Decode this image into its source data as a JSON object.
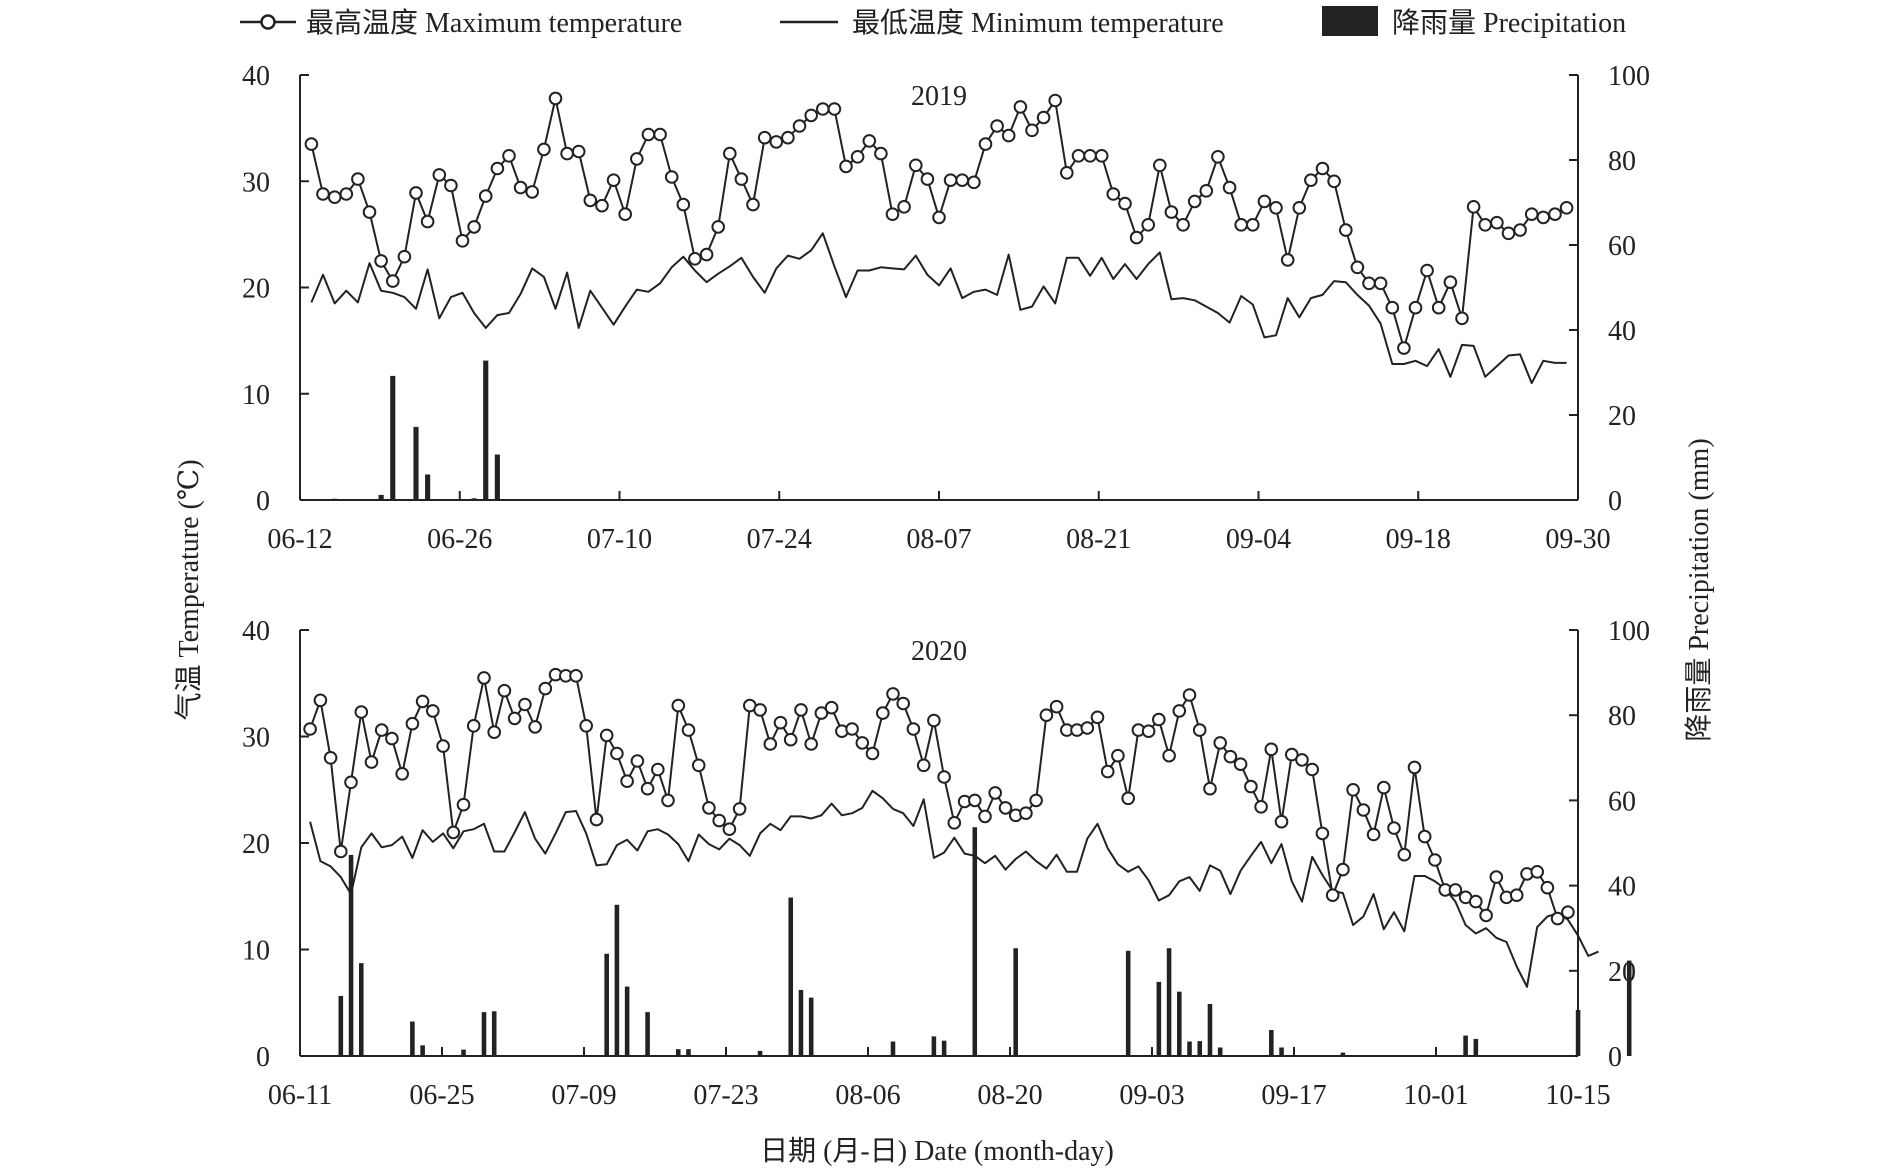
{
  "legend": {
    "tmax": "最高温度 Maximum temperature",
    "tmin": "最低温度 Minimum temperature",
    "precip": "降雨量 Precipitation"
  },
  "colors": {
    "line": "#222222",
    "bar": "#222222",
    "axis": "#222222"
  },
  "axes": {
    "ylabel_left": "气温 Temperature (℃)",
    "ylabel_right": "降雨量 Precipitation (mm)",
    "xlabel": "日期 (月-日) Date (month-day)"
  },
  "chart_data": [
    {
      "type": "line",
      "title": "2019",
      "x_ticks": [
        "06-12",
        "06-26",
        "07-10",
        "07-24",
        "08-07",
        "08-21",
        "09-04",
        "09-18",
        "09-30"
      ],
      "x_range": [
        0,
        112
      ],
      "ylim_left": [
        0,
        40
      ],
      "ylim_right": [
        0,
        100
      ],
      "y_ticks_left": [
        0,
        10,
        20,
        30,
        40
      ],
      "y_ticks_right": [
        0,
        20,
        40,
        60,
        80,
        100
      ],
      "series": [
        {
          "name": "最高温度 Maximum temperature",
          "axis": "left",
          "values": [
            33.5,
            28.8,
            28.5,
            28.8,
            30.2,
            27.1,
            22.5,
            20.6,
            22.9,
            28.9,
            26.2,
            30.6,
            29.6,
            24.4,
            25.7,
            28.6,
            31.2,
            32.4,
            29.4,
            29,
            33,
            37.8,
            32.6,
            32.8,
            28.2,
            27.7,
            30.1,
            26.9,
            32.1,
            34.4,
            34.4,
            30.4,
            27.8,
            22.7,
            23.1,
            25.7,
            32.6,
            30.2,
            27.8,
            34.1,
            33.7,
            34.1,
            35.2,
            36.2,
            36.8,
            36.8,
            31.4,
            32.3,
            33.8,
            32.6,
            26.9,
            27.6,
            31.5,
            30.2,
            26.6,
            30.1,
            30.1,
            29.9,
            33.5,
            35.2,
            34.3,
            37,
            34.8,
            36,
            37.6,
            30.8,
            32.4,
            32.4,
            32.4,
            28.8,
            27.9,
            24.7,
            25.9,
            31.5,
            27.1,
            25.9,
            28.1,
            29.1,
            32.3,
            29.4,
            25.9,
            25.9,
            28.1,
            27.5,
            22.6,
            27.5,
            30.1,
            31.2,
            30,
            25.4,
            21.9,
            20.4,
            20.4,
            18.1,
            14.3,
            18.1,
            21.6,
            18.1,
            20.5,
            17.1,
            27.6,
            25.9,
            26.1,
            25.1,
            25.4,
            26.9,
            26.6,
            26.9,
            27.5
          ]
        },
        {
          "name": "最低温度 Minimum temperature",
          "axis": "left",
          "values": [
            18.6,
            21.2,
            18.5,
            19.7,
            18.6,
            22.3,
            19.7,
            19.5,
            19.1,
            18,
            21.7,
            17.1,
            19.1,
            19.5,
            17.6,
            16.2,
            17.4,
            17.6,
            19.4,
            21.8,
            21,
            18,
            21.4,
            16.2,
            19.7,
            18.1,
            16.5,
            18.2,
            19.8,
            19.6,
            20.4,
            21.9,
            22.9,
            21.6,
            20.5,
            21.3,
            22,
            22.8,
            21,
            19.5,
            21.8,
            23,
            22.7,
            23.5,
            25.1,
            22,
            19.1,
            21.6,
            21.6,
            21.9,
            21.8,
            21.7,
            23,
            21.2,
            20.2,
            21.8,
            19,
            19.6,
            19.8,
            19.3,
            23.1,
            17.9,
            18.2,
            20.1,
            18.5,
            22.8,
            22.8,
            21.1,
            22.8,
            20.8,
            22.2,
            20.8,
            22.2,
            23.3,
            18.9,
            19,
            18.8,
            18.2,
            17.6,
            16.7,
            19.2,
            18.4,
            15.3,
            15.5,
            19,
            17.2,
            19,
            19.3,
            20.6,
            20.5,
            19.3,
            18.3,
            16.6,
            12.8,
            12.8,
            13.1,
            12.6,
            14.2,
            11.6,
            14.6,
            14.5,
            11.6,
            12.6,
            13.6,
            13.7,
            11,
            13.1,
            12.9,
            12.9
          ]
        },
        {
          "name": "降雨量 Precipitation",
          "axis": "right",
          "type": "bar",
          "values": [
            0,
            0,
            0.3,
            0,
            0,
            0,
            1.2,
            29.2,
            0,
            17.2,
            6,
            0,
            0,
            0,
            0.4,
            32.8,
            10.7,
            0,
            0,
            0,
            0,
            0,
            0,
            0,
            0,
            0,
            0,
            0,
            0,
            0,
            0,
            0,
            0,
            0,
            0,
            0,
            0,
            0,
            0,
            0,
            0,
            0,
            0,
            0,
            0,
            0,
            0,
            0,
            0,
            0,
            0,
            0,
            0,
            0,
            0,
            0,
            0,
            0,
            0,
            0,
            0,
            0,
            0,
            0,
            0,
            0,
            0,
            0,
            0,
            0,
            0,
            0,
            0,
            0,
            0,
            0,
            0,
            0,
            0,
            0,
            0,
            0,
            0,
            0,
            0,
            0,
            0,
            0,
            0,
            0,
            0,
            0,
            0,
            0,
            0,
            0,
            0,
            0,
            0,
            0,
            0,
            0,
            0,
            0,
            0,
            0,
            0,
            0,
            0
          ]
        }
      ]
    },
    {
      "type": "line",
      "title": "2020",
      "x_ticks": [
        "06-11",
        "06-25",
        "07-09",
        "07-23",
        "08-06",
        "08-20",
        "09-03",
        "09-17",
        "10-01",
        "10-15"
      ],
      "x_range": [
        0,
        126
      ],
      "ylim_left": [
        0,
        40
      ],
      "ylim_right": [
        0,
        100
      ],
      "y_ticks_left": [
        0,
        10,
        20,
        30,
        40
      ],
      "y_ticks_right": [
        0,
        20,
        40,
        60,
        80,
        100
      ],
      "series": [
        {
          "name": "最高温度 Maximum temperature",
          "axis": "left",
          "values": [
            30.7,
            33.4,
            28,
            19.2,
            25.7,
            32.3,
            27.6,
            30.6,
            29.8,
            26.5,
            31.2,
            33.3,
            32.4,
            29.1,
            21,
            23.6,
            31,
            35.5,
            30.4,
            34.3,
            31.7,
            33,
            30.9,
            34.5,
            35.8,
            35.7,
            35.7,
            31,
            22.2,
            30.1,
            28.4,
            25.8,
            27.7,
            25.1,
            26.9,
            24,
            32.9,
            30.6,
            27.3,
            23.3,
            22.1,
            21.3,
            23.2,
            32.9,
            32.5,
            29.3,
            31.3,
            29.7,
            32.5,
            29.3,
            32.2,
            32.7,
            30.5,
            30.7,
            29.4,
            28.4,
            32.2,
            34,
            33.1,
            30.7,
            27.3,
            31.5,
            26.2,
            21.9,
            23.9,
            24,
            22.5,
            24.7,
            23.3,
            22.6,
            22.8,
            24,
            32,
            32.8,
            30.6,
            30.6,
            30.8,
            31.8,
            26.7,
            28.2,
            24.2,
            30.6,
            30.5,
            31.6,
            28.2,
            32.4,
            33.9,
            30.6,
            25.1,
            29.4,
            28.1,
            27.4,
            25.3,
            23.4,
            28.8,
            22,
            28.3,
            27.8,
            26.9,
            20.9,
            15.1,
            17.5,
            25,
            23.1,
            20.8,
            25.2,
            21.4,
            18.9,
            27.1,
            20.6,
            18.4,
            15.6,
            15.6,
            14.9,
            14.5,
            13.2,
            16.8,
            14.9,
            15.1,
            17.1,
            17.3,
            15.8,
            12.9,
            13.5
          ]
        },
        {
          "name": "最低温度 Minimum temperature",
          "axis": "left",
          "values": [
            22,
            18.3,
            17.8,
            16.8,
            15.2,
            19.6,
            20.9,
            19.6,
            19.8,
            20.6,
            18.6,
            21.2,
            20.1,
            20.9,
            19.5,
            21.1,
            21.3,
            21.8,
            19.2,
            19.2,
            21,
            22.9,
            20.4,
            19,
            20.9,
            22.9,
            23,
            20.9,
            17.9,
            18,
            19.8,
            20.3,
            19.3,
            21.1,
            21.3,
            20.8,
            19.9,
            18.3,
            20.8,
            19.9,
            19.4,
            20.4,
            19.8,
            18.8,
            20.9,
            21.8,
            21.2,
            22.5,
            22.5,
            22.3,
            22.6,
            23.7,
            22.6,
            22.8,
            23.3,
            24.9,
            24.2,
            23.2,
            22.8,
            21.6,
            24.1,
            18.6,
            19.1,
            20.5,
            19,
            18.8,
            18.1,
            18.8,
            17.5,
            18.5,
            19.2,
            18.3,
            17.6,
            18.9,
            17.3,
            17.3,
            20.4,
            21.8,
            19.5,
            18,
            17.3,
            17.8,
            16.5,
            14.6,
            15.1,
            16.4,
            16.8,
            15.5,
            17.9,
            17.4,
            15.2,
            17.4,
            18.8,
            20.1,
            18.1,
            19.9,
            16.4,
            14.5,
            18.7,
            17,
            15.5,
            15.3,
            12.3,
            13.1,
            15.2,
            11.9,
            13.5,
            11.7,
            16.9,
            16.9,
            16.4,
            15.7,
            14.5,
            12.3,
            11.5,
            12,
            11.1,
            10.7,
            8.4,
            6.5,
            12.1,
            13.1,
            13.4,
            12.8,
            11.3,
            9.4,
            9.8
          ]
        },
        {
          "name": "降雨量 Precipitation",
          "axis": "right",
          "type": "bar",
          "values": [
            0,
            0,
            0,
            14.1,
            47.2,
            21.8,
            0,
            0,
            0,
            0,
            8.1,
            2.5,
            0,
            0,
            0,
            1.5,
            0,
            10.3,
            10.5,
            0,
            0,
            0,
            0,
            0,
            0,
            0,
            0,
            0,
            0,
            24,
            35.5,
            16.3,
            0,
            10.3,
            0,
            0,
            1.6,
            1.6,
            0,
            0,
            0,
            0,
            0,
            0,
            1.2,
            0,
            0,
            37.2,
            15.5,
            13.7,
            0,
            0,
            0,
            0,
            0,
            0,
            0,
            3.4,
            0,
            0,
            0,
            4.6,
            3.6,
            0,
            0,
            53.7,
            0,
            0,
            0,
            25.3,
            0,
            0,
            0,
            0,
            0,
            0,
            0,
            0,
            0,
            0,
            24.7,
            0,
            0,
            17.4,
            25.3,
            15.1,
            3.4,
            3.5,
            12.2,
            2,
            0,
            0,
            0,
            0,
            6.1,
            2,
            0,
            0,
            0,
            0,
            0,
            0.8,
            0,
            0,
            0,
            0,
            0,
            0,
            0,
            0,
            0,
            0,
            0,
            4.8,
            4,
            0,
            0,
            0,
            0,
            0,
            0,
            0,
            0,
            0,
            10.8,
            0,
            0,
            0,
            0,
            22.4
          ]
        }
      ]
    }
  ]
}
